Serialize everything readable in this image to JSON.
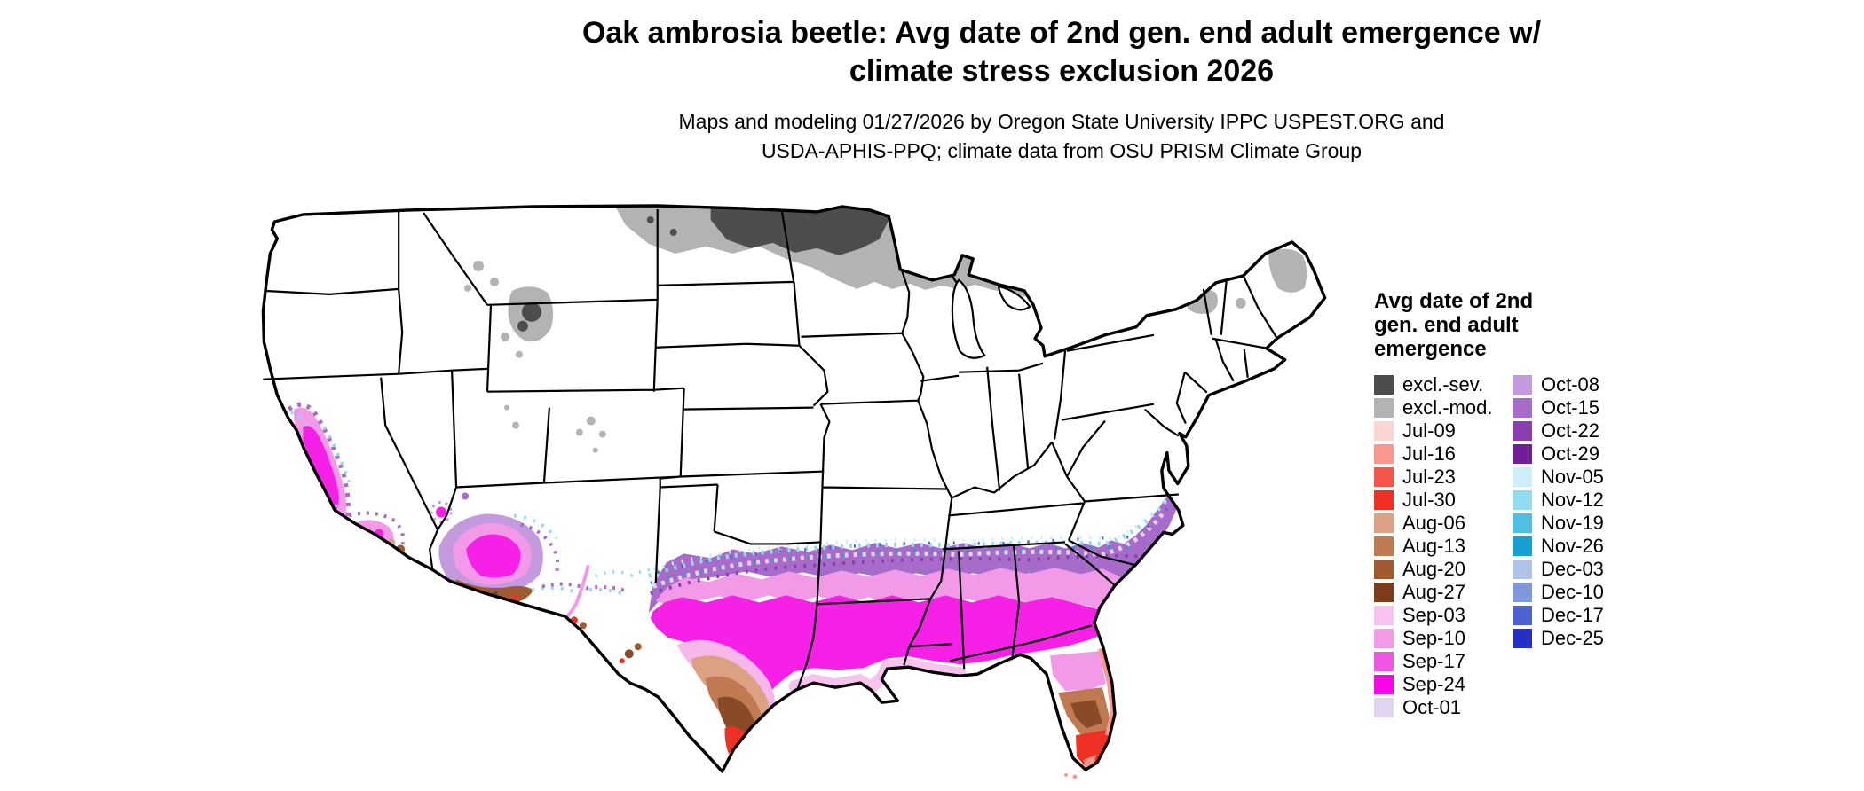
{
  "header": {
    "title_line1": "Oak ambrosia beetle: Avg date of 2nd gen. end adult emergence w/",
    "title_line2": "climate stress exclusion 2026",
    "subtitle_line1": "Maps and modeling 01/27/2026 by Oregon State University IPPC USPEST.ORG and",
    "subtitle_line2": "USDA-APHIS-PPQ; climate data from OSU PRISM Climate Group"
  },
  "legend": {
    "title_lines": [
      "Avg date of 2nd",
      "gen. end adult",
      "emergence"
    ],
    "column1": [
      {
        "label": "excl.-sev.",
        "color": "#4d4d4d"
      },
      {
        "label": "excl.-mod.",
        "color": "#b3b3b3"
      },
      {
        "label": "Jul-09",
        "color": "#fbd5d2"
      },
      {
        "label": "Jul-16",
        "color": "#f9968e"
      },
      {
        "label": "Jul-23",
        "color": "#f4564c"
      },
      {
        "label": "Jul-30",
        "color": "#ee3124"
      },
      {
        "label": "Aug-06",
        "color": "#dca183"
      },
      {
        "label": "Aug-13",
        "color": "#c07a52"
      },
      {
        "label": "Aug-20",
        "color": "#a05a33"
      },
      {
        "label": "Aug-27",
        "color": "#7e3c1d"
      },
      {
        "label": "Sep-03",
        "color": "#f7c3ee"
      },
      {
        "label": "Sep-10",
        "color": "#f29ae8"
      },
      {
        "label": "Sep-17",
        "color": "#ee55e2"
      },
      {
        "label": "Sep-24",
        "color": "#f707e7"
      },
      {
        "label": "Oct-01",
        "color": "#e2d4ee"
      }
    ],
    "column2": [
      {
        "label": "Oct-08",
        "color": "#c49ade"
      },
      {
        "label": "Oct-15",
        "color": "#a76cc9"
      },
      {
        "label": "Oct-22",
        "color": "#8a3eb0"
      },
      {
        "label": "Oct-29",
        "color": "#701f96"
      },
      {
        "label": "Nov-05",
        "color": "#cdeef9"
      },
      {
        "label": "Nov-12",
        "color": "#93dbf0"
      },
      {
        "label": "Nov-19",
        "color": "#4fc0e4"
      },
      {
        "label": "Nov-26",
        "color": "#189fd4"
      },
      {
        "label": "Dec-03",
        "color": "#adc3e8"
      },
      {
        "label": "Dec-10",
        "color": "#7e97dd"
      },
      {
        "label": "Dec-17",
        "color": "#4d62d2"
      },
      {
        "label": "Dec-25",
        "color": "#2430c4"
      }
    ]
  }
}
